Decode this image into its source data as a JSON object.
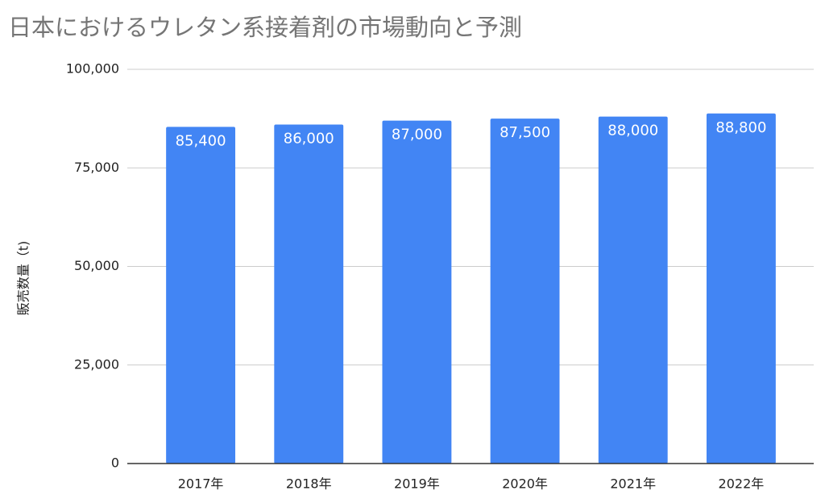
{
  "chart_data": {
    "type": "bar",
    "title": "日本におけるウレタン系接着剤の市場動向と予測",
    "y_axis_label": "販売数量（t)",
    "categories": [
      "2017年",
      "2018年",
      "2019年",
      "2020年",
      "2021年",
      "2022年"
    ],
    "values": [
      85400,
      86000,
      87000,
      87500,
      88000,
      88800
    ],
    "value_labels": [
      "85,400",
      "86,000",
      "87,000",
      "87,500",
      "88,000",
      "88,800"
    ],
    "color": "#4285f4",
    "ylim": [
      0,
      100000
    ],
    "yticks": [
      0,
      {
        "value": 25000,
        "label": "25,000"
      },
      {
        "value": 50000,
        "label": "50,000"
      },
      {
        "value": 75000,
        "label": "75,000"
      },
      {
        "value": 100000,
        "label": "100,000"
      }
    ],
    "grid": true
  }
}
